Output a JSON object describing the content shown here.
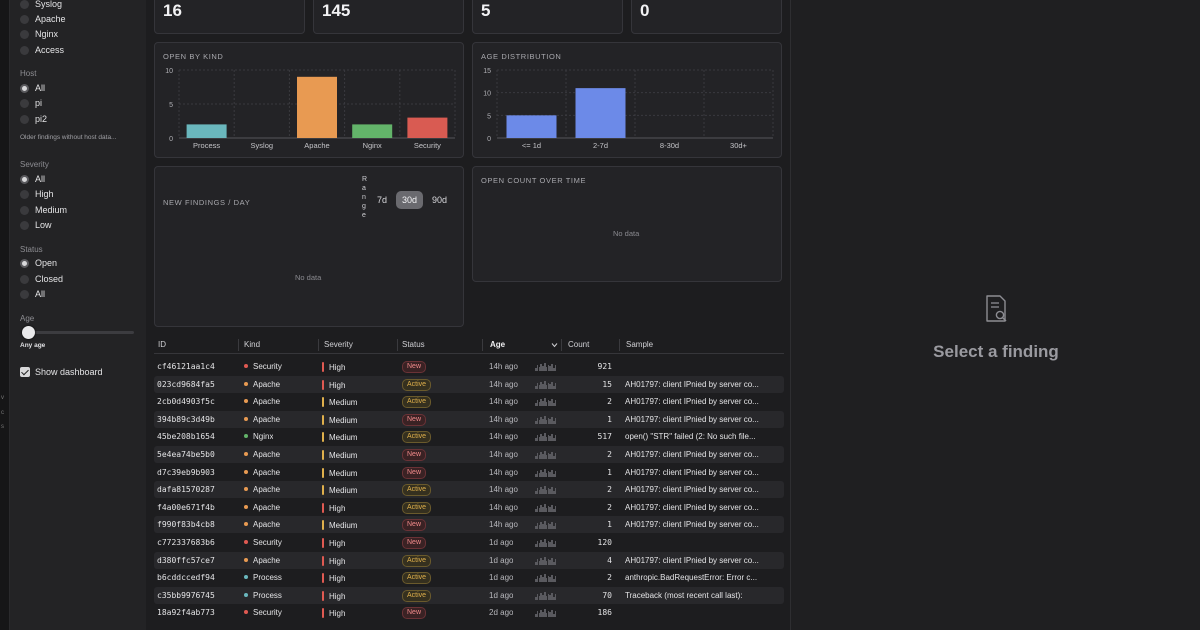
{
  "sidebar": {
    "log_options": [
      "Syslog",
      "Apache",
      "Nginx",
      "Access"
    ],
    "host": {
      "title": "Host",
      "options": [
        "All",
        "pi",
        "pi2"
      ],
      "selected": "All",
      "note": "Older findings without host data..."
    },
    "severity": {
      "title": "Severity",
      "options": [
        "All",
        "High",
        "Medium",
        "Low"
      ],
      "selected": "All"
    },
    "status": {
      "title": "Status",
      "options": [
        "Open",
        "Closed",
        "All"
      ],
      "selected": "Open"
    },
    "age": {
      "title": "Age",
      "value_label": "Any age",
      "slider_position": 0
    },
    "show_dashboard": {
      "label": "Show dashboard",
      "checked": true
    }
  },
  "stats": [
    "16",
    "145",
    "5",
    "0"
  ],
  "charts": {
    "open_by_kind": {
      "title": "OPEN BY KIND",
      "chart_data": {
        "type": "bar",
        "categories": [
          "Process",
          "Syslog",
          "Apache",
          "Nginx",
          "Security"
        ],
        "values": [
          2,
          0,
          9,
          2,
          3
        ],
        "colors": [
          "#6ab7bd",
          "#888888",
          "#e89a52",
          "#63b46a",
          "#d95b52"
        ],
        "ylim": [
          0,
          10
        ],
        "yticks": [
          "0",
          "5",
          "10"
        ]
      }
    },
    "age_distribution": {
      "title": "AGE DISTRIBUTION",
      "chart_data": {
        "type": "bar",
        "categories": [
          "<= 1d",
          "2-7d",
          "8-30d",
          "30d+"
        ],
        "values": [
          5,
          11,
          0,
          0
        ],
        "color": "#6c8ae8",
        "ylim": [
          0,
          15
        ],
        "yticks": [
          "0",
          "5",
          "10",
          "15"
        ]
      }
    },
    "new_findings": {
      "title": "NEW FINDINGS / DAY",
      "range_label": "Range",
      "ranges": [
        "7d",
        "30d",
        "90d"
      ],
      "selected_range": "30d",
      "empty_text": "No data"
    },
    "open_count": {
      "title": "OPEN COUNT OVER TIME",
      "empty_text": "No data"
    }
  },
  "table": {
    "columns": [
      "ID",
      "Kind",
      "Severity",
      "Status",
      "Age",
      "Count",
      "Sample"
    ],
    "kind_colors": {
      "Security": "#e05a52",
      "Apache": "#e89a52",
      "Nginx": "#63b46a",
      "Process": "#6ab7bd"
    },
    "severity_colors": {
      "High": "#e05a52",
      "Medium": "#e0b04c"
    },
    "rows": [
      {
        "id": "cf46121aa1c4",
        "kind": "Security",
        "severity": "High",
        "status": "New",
        "age": "14h ago",
        "count": "921",
        "sample": ""
      },
      {
        "id": "023cd9684fa5",
        "kind": "Apache",
        "severity": "High",
        "status": "Active",
        "age": "14h ago",
        "count": "15",
        "sample": "AH01797: client IPnied by server co..."
      },
      {
        "id": "2cb0d4903f5c",
        "kind": "Apache",
        "severity": "Medium",
        "status": "Active",
        "age": "14h ago",
        "count": "2",
        "sample": "AH01797: client IPnied by server co..."
      },
      {
        "id": "394b89c3d49b",
        "kind": "Apache",
        "severity": "Medium",
        "status": "New",
        "age": "14h ago",
        "count": "1",
        "sample": "AH01797: client IPnied by server co..."
      },
      {
        "id": "45be208b1654",
        "kind": "Nginx",
        "severity": "Medium",
        "status": "Active",
        "age": "14h ago",
        "count": "517",
        "sample": "open() \"STR\" failed (2: No such file..."
      },
      {
        "id": "5e4ea74be5b0",
        "kind": "Apache",
        "severity": "Medium",
        "status": "New",
        "age": "14h ago",
        "count": "2",
        "sample": "AH01797: client IPnied by server co..."
      },
      {
        "id": "d7c39eb9b903",
        "kind": "Apache",
        "severity": "Medium",
        "status": "New",
        "age": "14h ago",
        "count": "1",
        "sample": "AH01797: client IPnied by server co..."
      },
      {
        "id": "dafa81570287",
        "kind": "Apache",
        "severity": "Medium",
        "status": "Active",
        "age": "14h ago",
        "count": "2",
        "sample": "AH01797: client IPnied by server co..."
      },
      {
        "id": "f4a00e671f4b",
        "kind": "Apache",
        "severity": "High",
        "status": "Active",
        "age": "14h ago",
        "count": "2",
        "sample": "AH01797: client IPnied by server co..."
      },
      {
        "id": "f990f83b4cb8",
        "kind": "Apache",
        "severity": "Medium",
        "status": "New",
        "age": "14h ago",
        "count": "1",
        "sample": "AH01797: client IPnied by server co..."
      },
      {
        "id": "c772337683b6",
        "kind": "Security",
        "severity": "High",
        "status": "New",
        "age": "1d ago",
        "count": "120",
        "sample": ""
      },
      {
        "id": "d380ffc57ce7",
        "kind": "Apache",
        "severity": "High",
        "status": "Active",
        "age": "1d ago",
        "count": "4",
        "sample": "AH01797: client IPnied by server co..."
      },
      {
        "id": "b6cddccedf94",
        "kind": "Process",
        "severity": "High",
        "status": "Active",
        "age": "1d ago",
        "count": "2",
        "sample": "anthropic.BadRequestError: Error c..."
      },
      {
        "id": "c35bb9976745",
        "kind": "Process",
        "severity": "High",
        "status": "Active",
        "age": "1d ago",
        "count": "70",
        "sample": "Traceback (most recent call last):"
      },
      {
        "id": "18a92f4ab773",
        "kind": "Security",
        "severity": "High",
        "status": "New",
        "age": "2d ago",
        "count": "186",
        "sample": ""
      }
    ]
  },
  "detail": {
    "empty_text": "Select a finding",
    "icon": "document-search-icon"
  }
}
